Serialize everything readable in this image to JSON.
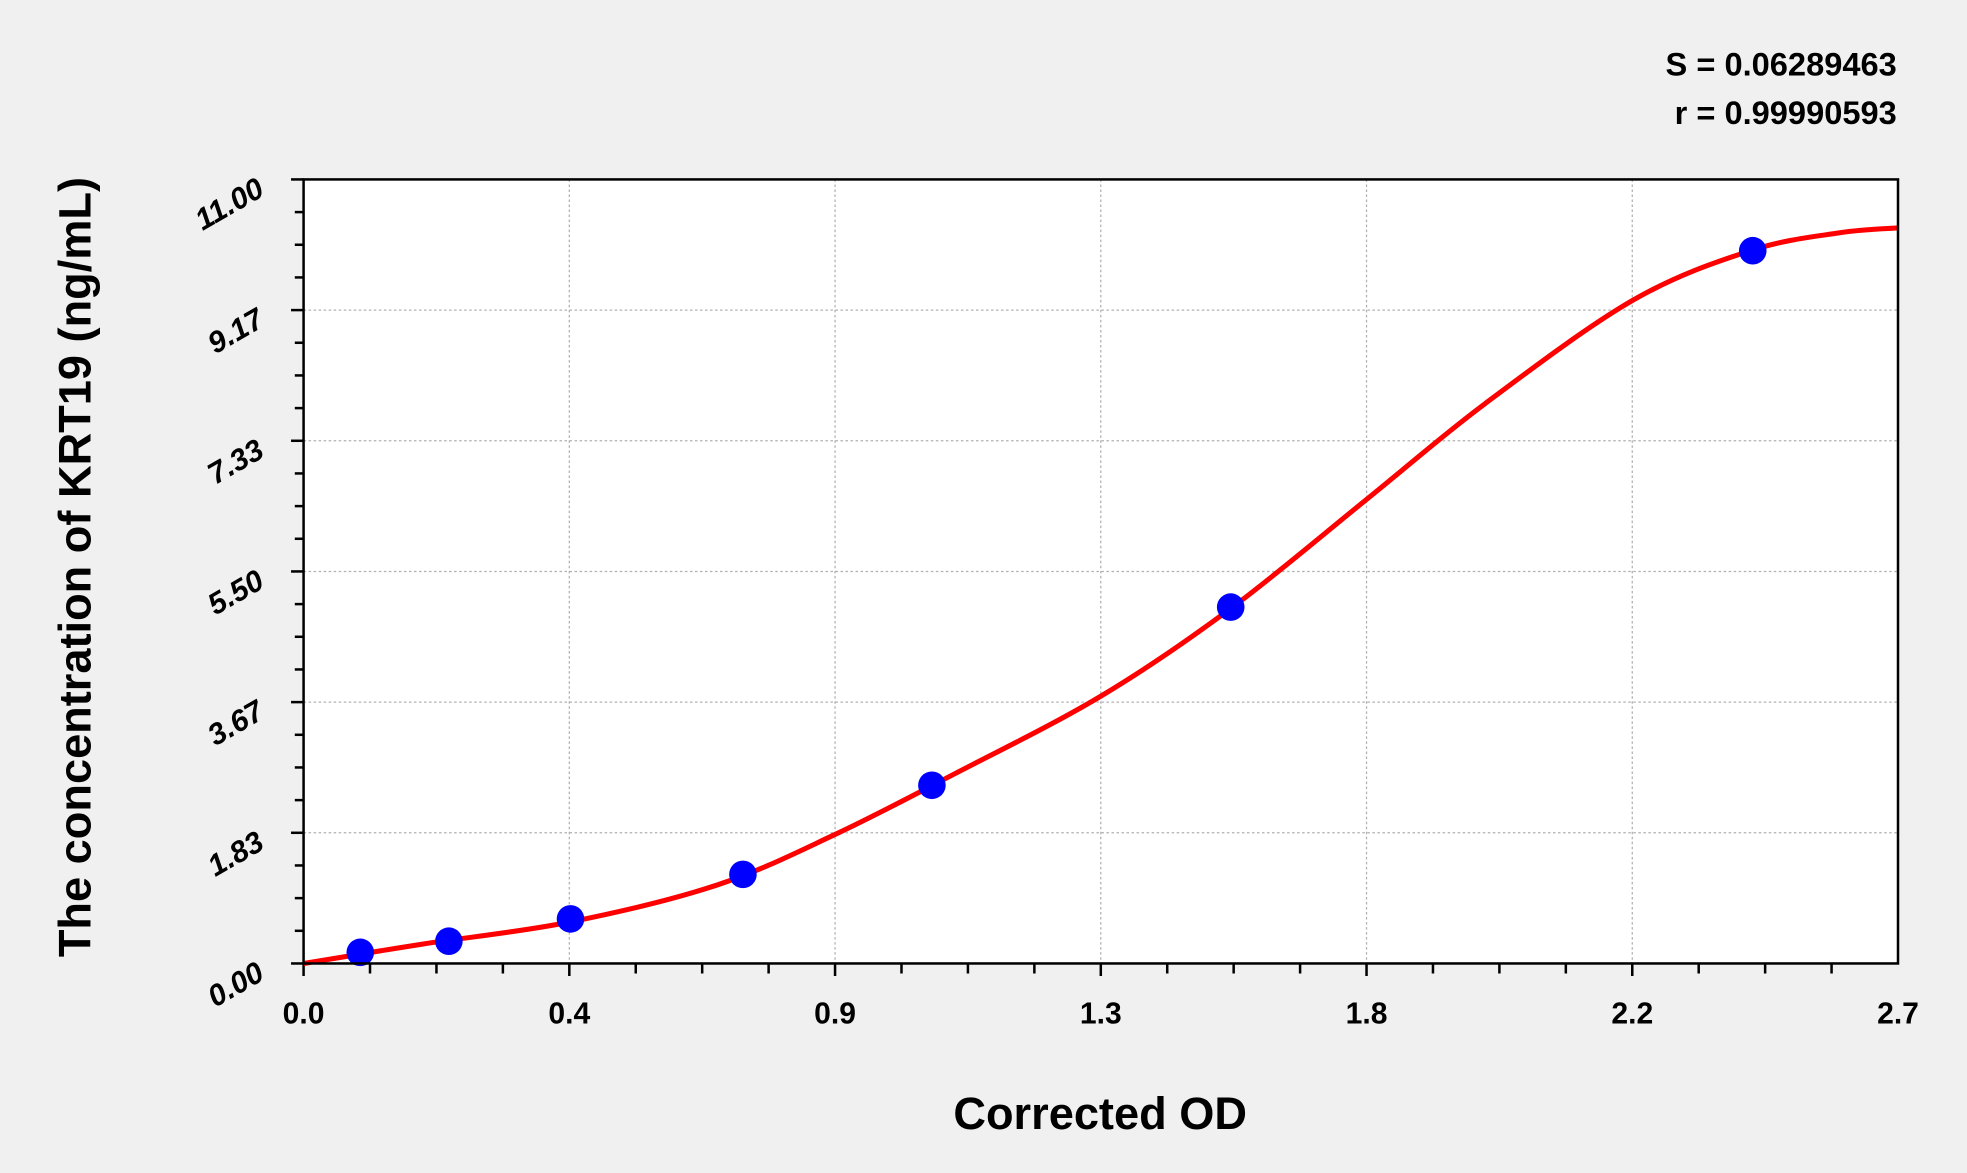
{
  "chart_data": {
    "type": "scatter",
    "title": "",
    "xlabel": "Corrected OD",
    "ylabel": "The concentration of KRT19 (ng/mL)",
    "xlim": [
      0,
      2.7
    ],
    "ylim": [
      0,
      11
    ],
    "x_ticks": [
      "0.0",
      "0.4",
      "0.9",
      "1.3",
      "1.8",
      "2.2",
      "2.7"
    ],
    "y_ticks": [
      "0.00",
      "1.83",
      "3.67",
      "5.50",
      "7.33",
      "9.17",
      "11.00"
    ],
    "grid": true,
    "annotations": [
      "S = 0.06289463",
      "r = 0.99990593"
    ],
    "points": {
      "color": "#0000ff",
      "x": [
        0.096,
        0.246,
        0.452,
        0.744,
        1.064,
        1.57,
        2.454
      ],
      "y": [
        0.156,
        0.312,
        0.625,
        1.25,
        2.5,
        5.0,
        10.0
      ]
    },
    "fit_curve": {
      "color": "#ff0000",
      "x": [
        0,
        0.2,
        0.45,
        0.7,
        0.9,
        1.1,
        1.35,
        1.57,
        1.8,
        2.0,
        2.25,
        2.45,
        2.6,
        2.7
      ],
      "y": [
        0,
        0.27,
        0.58,
        1.1,
        1.81,
        2.65,
        3.75,
        4.98,
        6.51,
        7.85,
        9.3,
        10.0,
        10.25,
        10.32
      ]
    }
  }
}
